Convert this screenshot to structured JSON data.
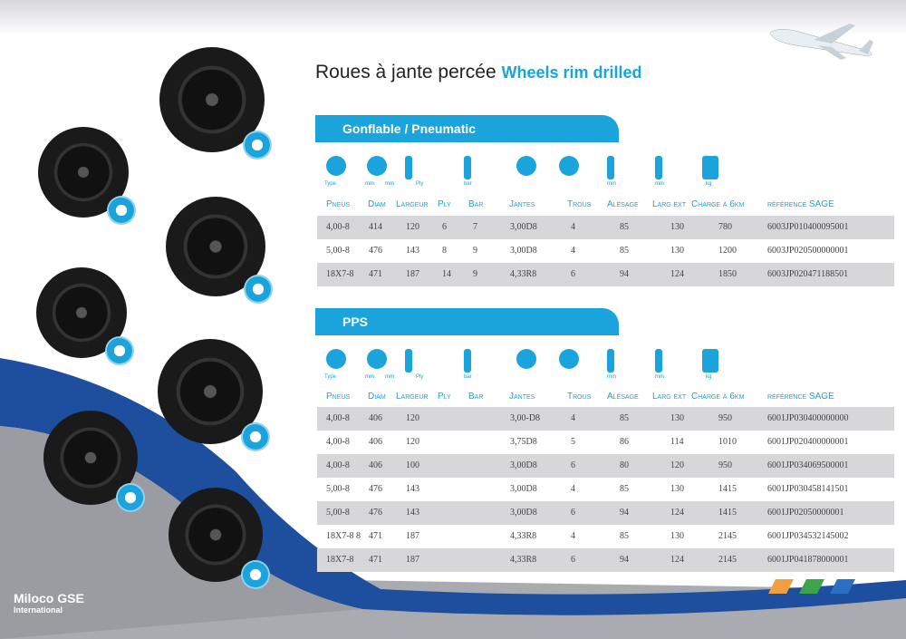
{
  "title": {
    "fr": "Roues à jante percée",
    "en": "Wheels rim drilled"
  },
  "columns": [
    "Pneus",
    "Diam",
    "Largeur",
    "Ply",
    "Bar",
    "Jantes",
    "Trous",
    "Alésage",
    "Larg ext",
    "Charge à 6km",
    "référence SAGE"
  ],
  "icon_labels": [
    "Type",
    "mm",
    "mm",
    "Ply",
    "bar",
    "",
    "",
    "mm",
    "mm",
    "kg"
  ],
  "sections": [
    {
      "title": "Gonflable / Pneumatic",
      "rows": [
        [
          "4,00-8",
          "414",
          "120",
          "6",
          "7",
          "3,00D8",
          "4",
          "85",
          "130",
          "780",
          "6003JP010400095001"
        ],
        [
          "5,00-8",
          "476",
          "143",
          "8",
          "9",
          "3,00D8",
          "4",
          "85",
          "130",
          "1200",
          "6003JP020500000001"
        ],
        [
          "18X7-8",
          "471",
          "187",
          "14",
          "9",
          "4,33R8",
          "6",
          "94",
          "124",
          "1850",
          "6003JP020471188501"
        ]
      ]
    },
    {
      "title": "PPS",
      "rows": [
        [
          "4,00-8",
          "406",
          "120",
          "",
          "",
          "3,00-D8",
          "4",
          "85",
          "130",
          "950",
          "6001JP030400000000"
        ],
        [
          "4,00-8",
          "406",
          "120",
          "",
          "",
          "3,75D8",
          "5",
          "86",
          "114",
          "1010",
          "6001JP020400000001"
        ],
        [
          "4,00-8",
          "406",
          "100",
          "",
          "",
          "3,00D8",
          "6",
          "80",
          "120",
          "950",
          "6001JP034069500001"
        ],
        [
          "5,00-8",
          "476",
          "143",
          "",
          "",
          "3,00D8",
          "4",
          "85",
          "130",
          "1415",
          "6001JP030458141501"
        ],
        [
          "5,00-8",
          "476",
          "143",
          "",
          "",
          "3,00D8",
          "6",
          "94",
          "124",
          "1415",
          "6001JP02050000001"
        ],
        [
          "18X7-8 8",
          "471",
          "187",
          "",
          "",
          "4,33R8",
          "4",
          "85",
          "130",
          "2145",
          "6001JP034532145002"
        ],
        [
          "18X7-8",
          "471",
          "187",
          "",
          "",
          "4,33R8",
          "6",
          "94",
          "124",
          "2145",
          "6001JP041878000001"
        ]
      ]
    }
  ],
  "logo": {
    "name": "Miloco GSE",
    "sub": "International"
  },
  "colors": {
    "accent": "#1ba3dc",
    "swoosh": "#1d4f9e",
    "stripes": [
      "#f0a040",
      "#3fa34d",
      "#2a6fc0"
    ]
  }
}
